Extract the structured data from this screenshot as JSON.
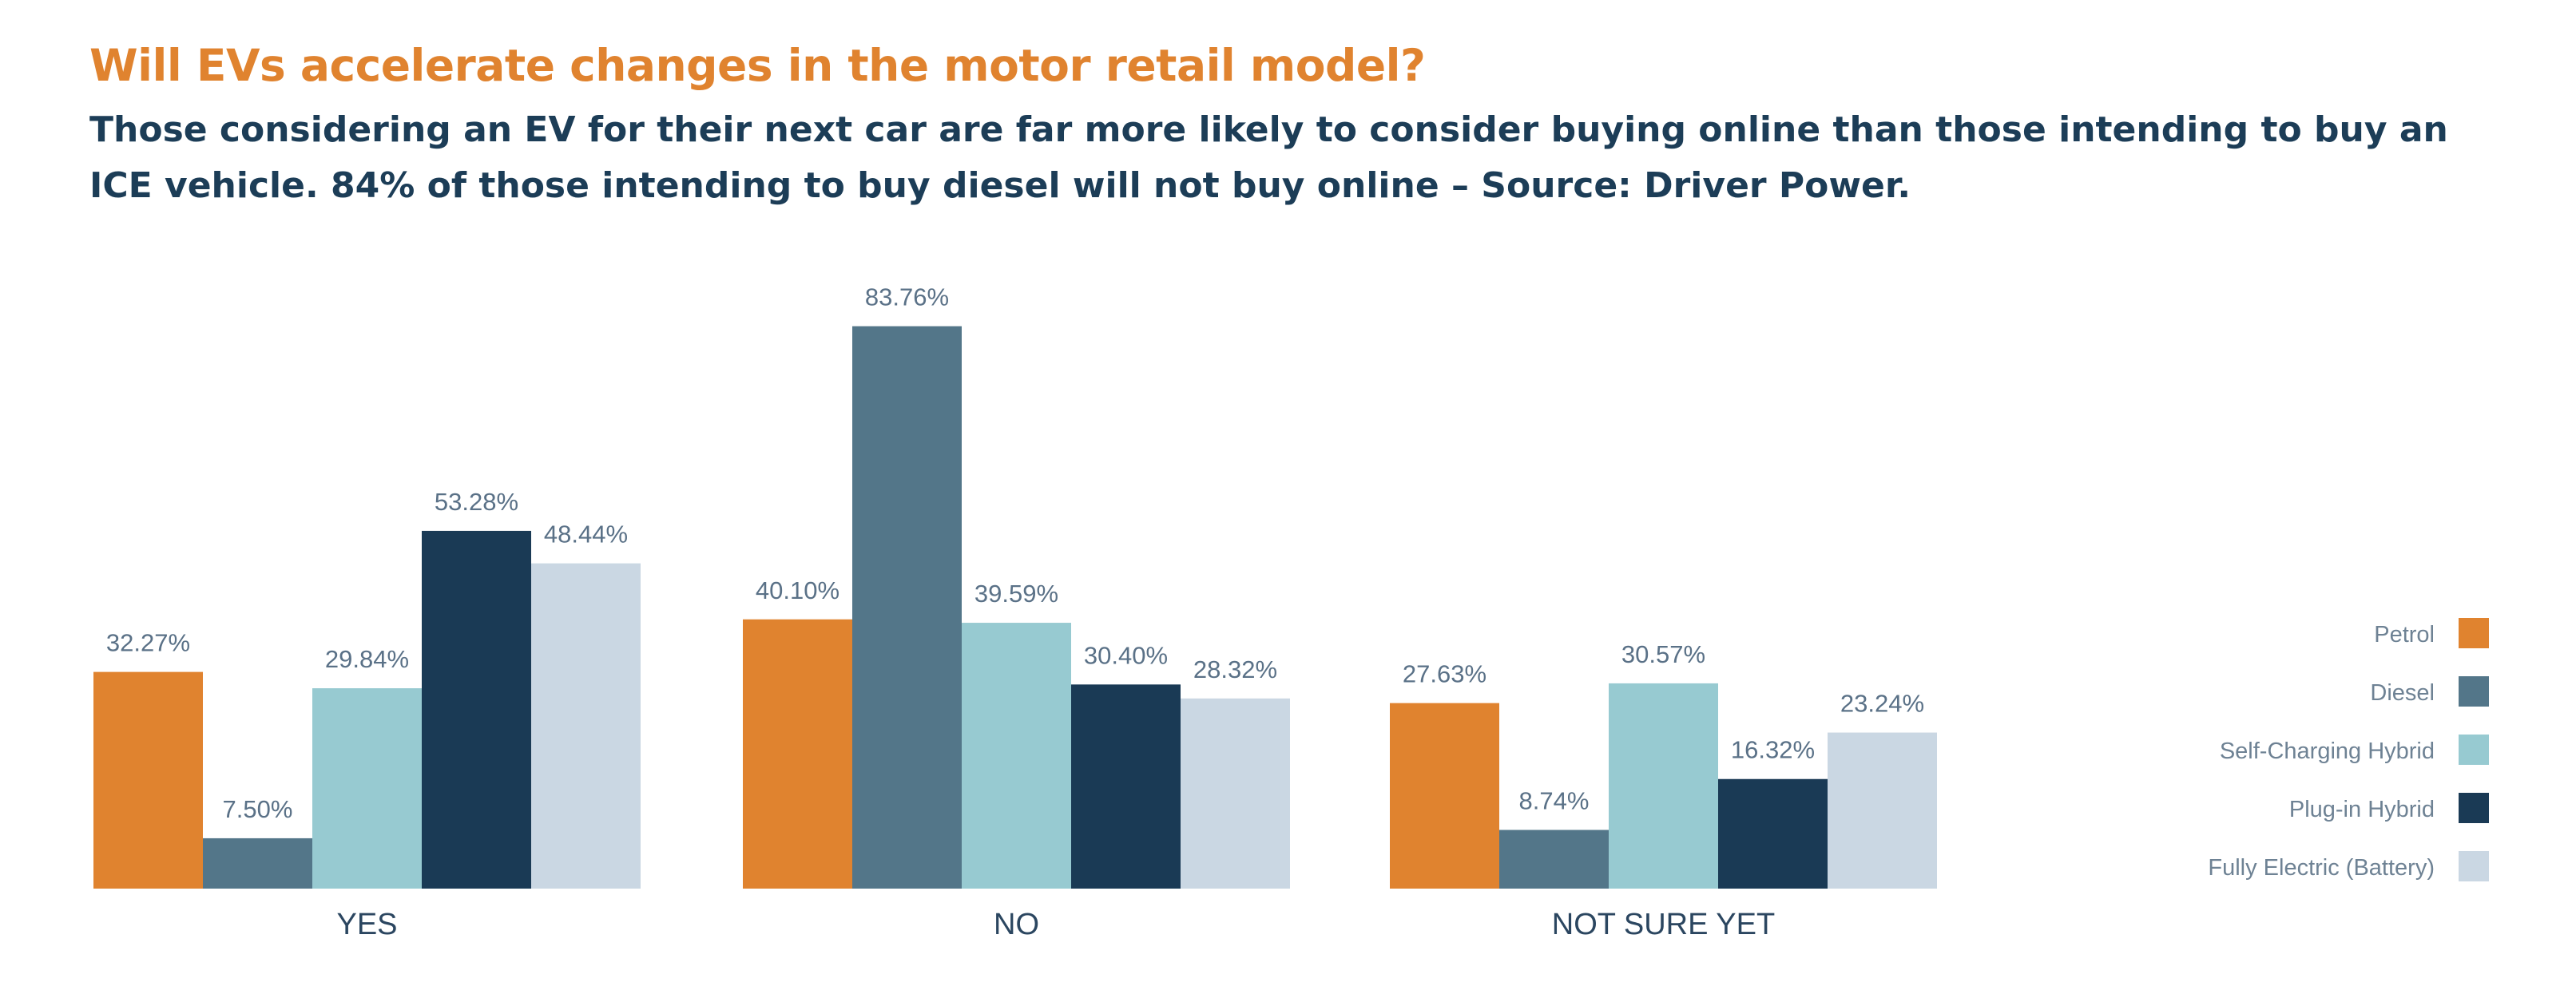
{
  "title": "Will EVs accelerate changes in the motor retail model?",
  "subtitle": "Those considering an EV for their next car are far more likely to consider buying online than those intending to buy an ICE vehicle. 84% of those intending to buy diesel will not buy online – Source: Driver Power.",
  "chart_data": {
    "type": "bar",
    "categories": [
      "YES",
      "NO",
      "NOT SURE YET"
    ],
    "series": [
      {
        "name": "Petrol",
        "color": "#E0832F",
        "values": [
          32.27,
          40.1,
          27.63
        ],
        "labels": [
          "32.27%",
          "40.10%",
          "27.63%"
        ]
      },
      {
        "name": "Diesel",
        "color": "#537689",
        "values": [
          7.5,
          83.76,
          8.74
        ],
        "labels": [
          "7.50%",
          "83.76%",
          "8.74%"
        ]
      },
      {
        "name": "Self-Charging Hybrid",
        "color": "#97CAD1",
        "values": [
          29.84,
          39.59,
          30.57
        ],
        "labels": [
          "29.84%",
          "39.59%",
          "30.57%"
        ]
      },
      {
        "name": "Plug-in Hybrid",
        "color": "#1A3A55",
        "values": [
          53.28,
          30.4,
          16.32
        ],
        "labels": [
          "53.28%",
          "30.40%",
          "16.32%"
        ]
      },
      {
        "name": "Fully Electric (Battery)",
        "color": "#CAD7E3",
        "values": [
          48.44,
          28.32,
          23.24
        ],
        "labels": [
          "48.44%",
          "28.32%",
          "23.24%"
        ]
      }
    ],
    "ylim": [
      0,
      100
    ],
    "grid": false,
    "legend": "right"
  }
}
